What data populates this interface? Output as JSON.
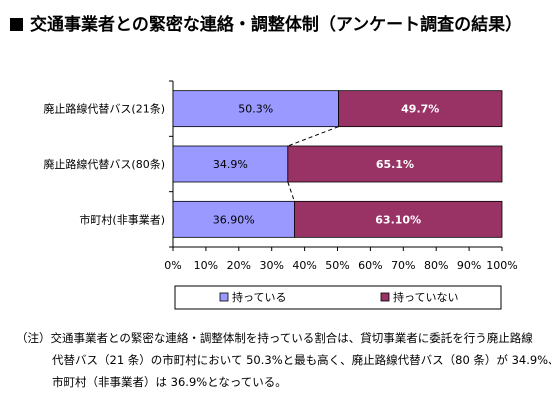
{
  "title": "交通事業者との緊密な連絡・調整体制（アンケート調査の結果）",
  "note": {
    "prefix": "（注）",
    "line1": "交通事業者との緊密な連絡・調整体制を持っている割合は、貸切事業者に委託を行う廃止路線",
    "line2": "代替バス（21 条）の市町村において 50.3%と最も高く、廃止路線代替バス（80 条）が 34.9%、",
    "line3": "市町村（非事業者）は 36.9%となっている。"
  },
  "chart_data": {
    "type": "bar",
    "orientation": "horizontal",
    "stacked": true,
    "percent": true,
    "categories": [
      "廃止路線代替バス(21条)",
      "廃止路線代替バス(80条)",
      "市町村(非事業者)"
    ],
    "series": [
      {
        "name": "持っている",
        "values": [
          50.3,
          34.9,
          36.9
        ],
        "labels": [
          "50.3%",
          "34.9%",
          "36.90%"
        ],
        "color": "#9999ff"
      },
      {
        "name": "持っていない",
        "values": [
          49.7,
          65.1,
          63.1
        ],
        "labels": [
          "49.7%",
          "65.1%",
          "63.10%"
        ],
        "color": "#993366"
      }
    ],
    "xticks": [
      "0%",
      "10%",
      "20%",
      "30%",
      "40%",
      "50%",
      "60%",
      "70%",
      "80%",
      "90%",
      "100%"
    ],
    "xlim": [
      0,
      100
    ],
    "grid": false,
    "legend": "bottom",
    "series_lines": true
  }
}
